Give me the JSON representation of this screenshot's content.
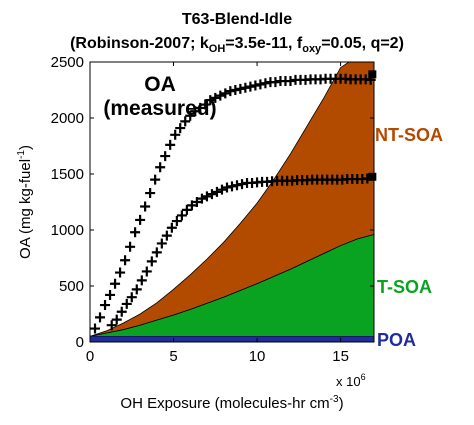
{
  "chart_data": {
    "type": "area",
    "title": "T63-Blend-Idle",
    "subtitle_parts": {
      "p1": "(Robinson-2007; k",
      "p1_sub": "OH",
      "p2": "=3.5e-11, f",
      "p2_sub": "oxy",
      "p3": "=0.05, q=2)"
    },
    "xlabel_parts": {
      "main": "OH Exposure (molecules-hr cm",
      "sup": "-3",
      "end": ")"
    },
    "ylabel_parts": {
      "main": "OA (mg kg-fuel",
      "sup": "-1",
      "end": ")"
    },
    "x_multiplier_parts": {
      "base": "x 10",
      "exp": "6"
    },
    "xlim": [
      0,
      17
    ],
    "ylim": [
      0,
      2500
    ],
    "xticks": [
      0,
      5,
      10,
      15
    ],
    "yticks": [
      0,
      500,
      1000,
      1500,
      2000,
      2500
    ],
    "grid": false,
    "colors": {
      "poa": "#1f2d9c",
      "tsoa": "#0aa321",
      "ntsoa": "#b24a00"
    },
    "series": [
      {
        "name": "POA",
        "role": "poa",
        "x": [
          0,
          17
        ],
        "y": [
          50,
          50
        ]
      },
      {
        "name": "T-SOA",
        "role": "tsoa",
        "x": [
          0,
          1,
          2,
          3,
          4,
          5,
          6,
          7,
          8,
          9,
          10,
          11,
          12,
          13,
          14,
          15,
          16,
          17
        ],
        "y": [
          50,
          80,
          110,
          150,
          195,
          240,
          290,
          345,
          400,
          460,
          520,
          585,
          650,
          720,
          790,
          860,
          920,
          960
        ]
      },
      {
        "name": "NT-SOA",
        "role": "ntsoa",
        "x": [
          0,
          1,
          2,
          3,
          4,
          5,
          6,
          7,
          8,
          9,
          10,
          11,
          12,
          13,
          14,
          15,
          15.5
        ],
        "y": [
          50,
          100,
          170,
          250,
          350,
          470,
          600,
          740,
          890,
          1060,
          1240,
          1450,
          1680,
          1930,
          2180,
          2450,
          2500
        ]
      }
    ],
    "measured_upper": {
      "x": [
        0.3,
        0.6,
        0.9,
        1.2,
        1.5,
        1.8,
        2.1,
        2.4,
        2.7,
        3.0,
        3.3,
        3.6,
        3.9,
        4.2,
        4.5,
        4.8,
        5.1,
        5.4,
        5.7,
        6.0,
        6.3,
        6.6,
        6.9,
        7.2,
        7.5,
        7.8,
        8.1,
        8.4,
        8.7,
        9.0,
        9.3,
        9.6,
        9.9,
        10.2,
        10.5,
        10.8,
        11.1,
        11.4,
        11.7,
        12.0,
        12.3,
        12.6,
        12.9,
        13.2,
        13.5,
        13.8,
        14.1,
        14.4,
        14.7,
        15.0,
        15.3,
        15.6,
        15.9,
        16.2,
        16.5,
        16.8
      ],
      "y": [
        120,
        220,
        330,
        420,
        520,
        620,
        730,
        850,
        980,
        1090,
        1210,
        1330,
        1450,
        1560,
        1660,
        1760,
        1850,
        1910,
        1970,
        2020,
        2060,
        2090,
        2120,
        2160,
        2180,
        2200,
        2220,
        2240,
        2250,
        2260,
        2270,
        2280,
        2290,
        2300,
        2310,
        2320,
        2320,
        2330,
        2330,
        2330,
        2340,
        2340,
        2340,
        2345,
        2345,
        2345,
        2350,
        2350,
        2350,
        2350,
        2350,
        2345,
        2345,
        2345,
        2345,
        2340
      ]
    },
    "measured_lower": {
      "x": [
        1.3,
        1.6,
        1.9,
        2.2,
        2.5,
        2.8,
        3.1,
        3.4,
        3.7,
        4.0,
        4.3,
        4.6,
        4.9,
        5.2,
        5.5,
        5.8,
        6.1,
        6.4,
        6.7,
        7.0,
        7.3,
        7.6,
        7.9,
        8.2,
        8.5,
        8.8,
        9.1,
        9.4,
        9.7,
        10.0,
        10.3,
        10.6,
        10.9,
        11.2,
        11.5,
        11.8,
        12.1,
        12.4,
        12.7,
        13.0,
        13.3,
        13.6,
        13.9,
        14.2,
        14.5,
        14.8,
        15.1,
        15.4,
        15.7,
        16.0,
        16.3,
        16.6
      ],
      "y": [
        150,
        200,
        270,
        340,
        400,
        470,
        550,
        630,
        720,
        800,
        880,
        950,
        1020,
        1080,
        1130,
        1180,
        1220,
        1250,
        1280,
        1300,
        1320,
        1340,
        1360,
        1380,
        1390,
        1400,
        1410,
        1420,
        1420,
        1425,
        1430,
        1430,
        1435,
        1440,
        1440,
        1440,
        1440,
        1445,
        1445,
        1445,
        1450,
        1450,
        1450,
        1450,
        1450,
        1450,
        1450,
        1455,
        1455,
        1455,
        1455,
        1460
      ]
    },
    "measured_end_markers": [
      {
        "x": 16.9,
        "y": 2390
      },
      {
        "x": 16.9,
        "y": 1475
      }
    ],
    "annotations": {
      "oa_line1": "OA",
      "oa_line2": "(measured)",
      "ntsoa": "NT-SOA",
      "tsoa": "T-SOA",
      "poa": "POA"
    }
  }
}
